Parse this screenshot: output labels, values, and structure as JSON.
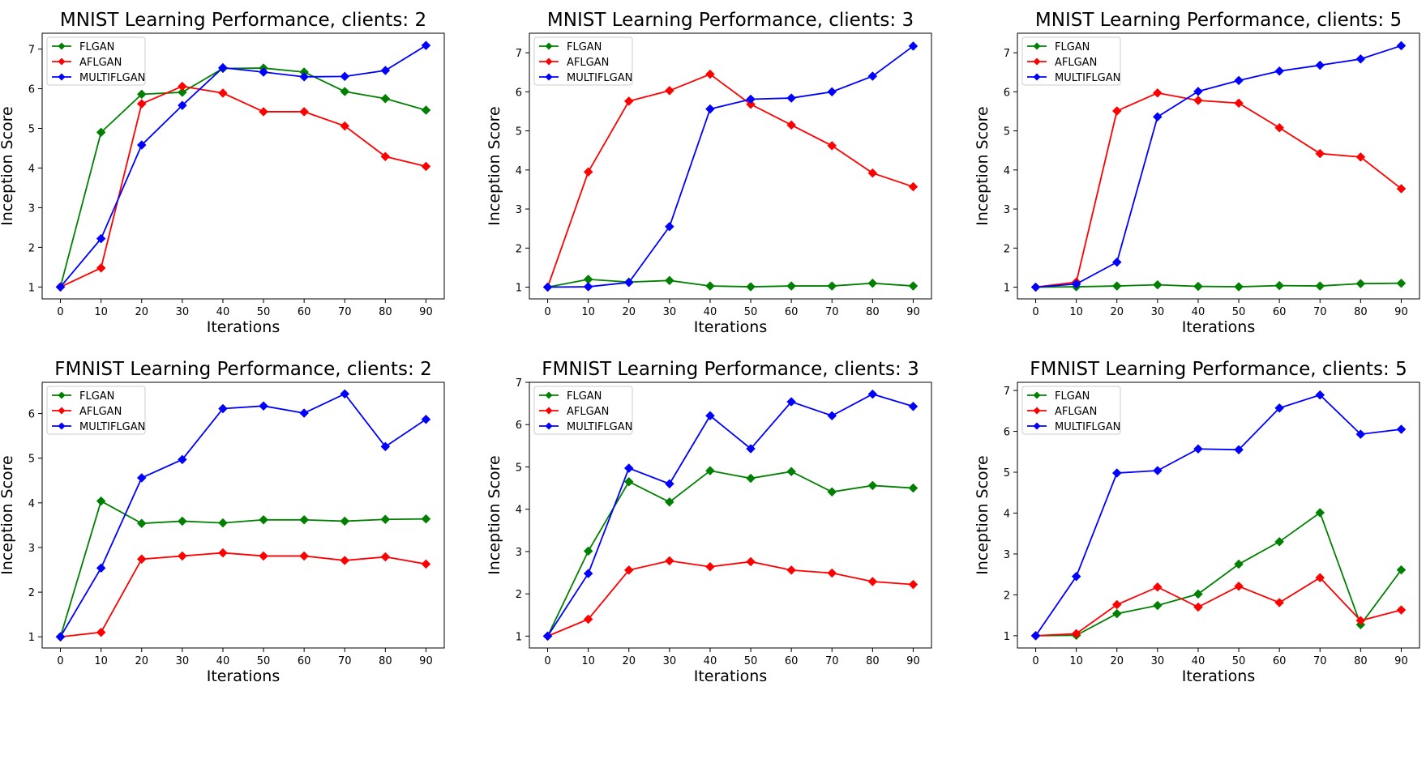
{
  "colors": {
    "FLGAN": "#008000",
    "AFLGAN": "#ff0000",
    "MULTIFLGAN": "#0000ff"
  },
  "chart_data": [
    {
      "type": "line",
      "title": "MNIST Learning Performance, clients: 2",
      "xlabel": "Iterations",
      "ylabel": "Inception Score",
      "x": [
        0,
        10,
        20,
        30,
        40,
        50,
        60,
        70,
        80,
        90
      ],
      "xlim": [
        -4.5,
        94.5
      ],
      "ylim": [
        0.7,
        7.4
      ],
      "yticks": [
        1,
        2,
        3,
        4,
        5,
        6,
        7
      ],
      "series": [
        {
          "name": "FLGAN",
          "values": [
            1.0,
            4.9,
            5.86,
            5.91,
            6.51,
            6.52,
            6.42,
            5.93,
            5.75,
            5.46
          ]
        },
        {
          "name": "AFLGAN",
          "values": [
            1.0,
            1.48,
            5.62,
            6.06,
            5.89,
            5.42,
            5.42,
            5.06,
            4.29,
            4.04
          ]
        },
        {
          "name": "MULTIFLGAN",
          "values": [
            1.0,
            2.22,
            4.58,
            5.58,
            6.53,
            6.42,
            6.3,
            6.31,
            6.46,
            7.09
          ]
        }
      ]
    },
    {
      "type": "line",
      "title": "MNIST Learning Performance, clients: 3",
      "xlabel": "Iterations",
      "ylabel": "Inception Score",
      "x": [
        0,
        10,
        20,
        30,
        40,
        50,
        60,
        70,
        80,
        90
      ],
      "xlim": [
        -4.5,
        94.5
      ],
      "ylim": [
        0.7,
        7.5
      ],
      "yticks": [
        1,
        2,
        3,
        4,
        5,
        6,
        7
      ],
      "series": [
        {
          "name": "FLGAN",
          "values": [
            1.0,
            1.2,
            1.13,
            1.17,
            1.03,
            1.01,
            1.03,
            1.03,
            1.1,
            1.03
          ]
        },
        {
          "name": "AFLGAN",
          "values": [
            1.0,
            3.95,
            5.76,
            6.03,
            6.45,
            5.68,
            5.15,
            4.62,
            3.92,
            3.57
          ]
        },
        {
          "name": "MULTIFLGAN",
          "values": [
            1.0,
            1.01,
            1.12,
            2.55,
            5.56,
            5.81,
            5.84,
            6.0,
            6.4,
            7.17
          ]
        }
      ]
    },
    {
      "type": "line",
      "title": "MNIST Learning Performance, clients: 5",
      "xlabel": "Iterations",
      "ylabel": "Inception Score",
      "x": [
        0,
        10,
        20,
        30,
        40,
        50,
        60,
        70,
        80,
        90
      ],
      "xlim": [
        -4.5,
        94.5
      ],
      "ylim": [
        0.7,
        7.5
      ],
      "yticks": [
        1,
        2,
        3,
        4,
        5,
        6,
        7
      ],
      "series": [
        {
          "name": "FLGAN",
          "values": [
            1.0,
            1.01,
            1.03,
            1.06,
            1.02,
            1.01,
            1.04,
            1.03,
            1.09,
            1.1
          ]
        },
        {
          "name": "AFLGAN",
          "values": [
            1.0,
            1.13,
            5.51,
            5.97,
            5.78,
            5.71,
            5.08,
            4.42,
            4.33,
            3.52
          ]
        },
        {
          "name": "MULTIFLGAN",
          "values": [
            1.0,
            1.08,
            1.64,
            5.36,
            6.01,
            6.29,
            6.53,
            6.68,
            6.84,
            7.18
          ]
        }
      ]
    },
    {
      "type": "line",
      "title": "FMNIST Learning Performance, clients: 2",
      "xlabel": "Iterations",
      "ylabel": "Inception Score",
      "x": [
        0,
        10,
        20,
        30,
        40,
        50,
        60,
        70,
        80,
        90
      ],
      "xlim": [
        -4.5,
        94.5
      ],
      "ylim": [
        0.75,
        6.7
      ],
      "yticks": [
        1,
        2,
        3,
        4,
        5,
        6
      ],
      "series": [
        {
          "name": "FLGAN",
          "values": [
            1.0,
            4.04,
            3.54,
            3.59,
            3.55,
            3.62,
            3.62,
            3.59,
            3.63,
            3.64
          ]
        },
        {
          "name": "AFLGAN",
          "values": [
            1.0,
            1.1,
            2.74,
            2.81,
            2.88,
            2.81,
            2.81,
            2.71,
            2.79,
            2.63
          ]
        },
        {
          "name": "MULTIFLGAN",
          "values": [
            1.0,
            2.54,
            4.56,
            4.97,
            6.11,
            6.17,
            6.01,
            6.44,
            5.26,
            5.87
          ]
        }
      ]
    },
    {
      "type": "line",
      "title": "FMNIST Learning Performance, clients: 3",
      "xlabel": "Iterations",
      "ylabel": "Inception Score",
      "x": [
        0,
        10,
        20,
        30,
        40,
        50,
        60,
        70,
        80,
        90
      ],
      "xlim": [
        -4.5,
        94.5
      ],
      "ylim": [
        0.72,
        7.0
      ],
      "yticks": [
        1,
        2,
        3,
        4,
        5,
        6,
        7
      ],
      "series": [
        {
          "name": "FLGAN",
          "values": [
            1.0,
            3.01,
            4.65,
            4.17,
            4.91,
            4.73,
            4.89,
            4.41,
            4.56,
            4.5
          ]
        },
        {
          "name": "AFLGAN",
          "values": [
            1.0,
            1.4,
            2.56,
            2.78,
            2.64,
            2.76,
            2.56,
            2.49,
            2.29,
            2.22
          ]
        },
        {
          "name": "MULTIFLGAN",
          "values": [
            1.0,
            2.48,
            4.97,
            4.6,
            6.21,
            5.43,
            6.54,
            6.21,
            6.72,
            6.43
          ]
        }
      ]
    },
    {
      "type": "line",
      "title": "FMNIST Learning Performance, clients: 5",
      "xlabel": "Iterations",
      "ylabel": "Inception Score",
      "x": [
        0,
        10,
        20,
        30,
        40,
        50,
        60,
        70,
        80,
        90
      ],
      "xlim": [
        -4.5,
        94.5
      ],
      "ylim": [
        0.7,
        7.2
      ],
      "yticks": [
        1,
        2,
        3,
        4,
        5,
        6,
        7
      ],
      "series": [
        {
          "name": "FLGAN",
          "values": [
            1.0,
            1.01,
            1.54,
            1.74,
            2.02,
            2.75,
            3.3,
            4.01,
            1.27,
            2.61
          ]
        },
        {
          "name": "AFLGAN",
          "values": [
            1.0,
            1.05,
            1.76,
            2.19,
            1.7,
            2.21,
            1.81,
            2.42,
            1.37,
            1.63
          ]
        },
        {
          "name": "MULTIFLGAN",
          "values": [
            1.0,
            2.45,
            4.98,
            5.04,
            5.57,
            5.55,
            6.57,
            6.89,
            5.93,
            6.05
          ]
        }
      ]
    }
  ]
}
